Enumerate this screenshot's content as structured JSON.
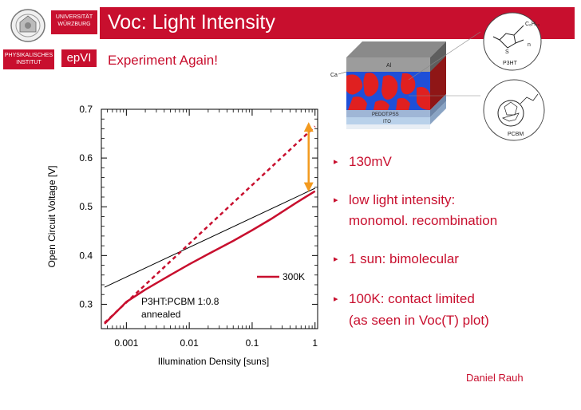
{
  "header": {
    "title": "Voc: Light Intensity",
    "subtitle": "Experiment Again!",
    "logo_university_line1": "UNIVERSITÄT",
    "logo_university_line2": "WÜRZBURG",
    "logo_institute_line1": "PHYSIKALISCHES",
    "logo_institute_line2": "INSTITUT",
    "logo_group": "epVI"
  },
  "chart_data": {
    "type": "line",
    "xlabel": "Illumination Density  [suns]",
    "ylabel": "Open Circuit Voltage  [V]",
    "xscale": "log",
    "xlim": [
      0.0004,
      1.1
    ],
    "ylim": [
      0.25,
      0.7
    ],
    "x_ticks": [
      0.001,
      0.01,
      0.1,
      1
    ],
    "x_tick_labels": [
      "0.001",
      "0.01",
      "0.1",
      "1"
    ],
    "y_ticks": [
      0.3,
      0.4,
      0.5,
      0.6,
      0.7
    ],
    "y_tick_labels": [
      "0.3",
      "0.4",
      "0.5",
      "0.6",
      "0.7"
    ],
    "legend": {
      "entry": "300K",
      "placement": "lower-right"
    },
    "annotation": [
      "P3HT:PCBM 1:0.8",
      "annealed"
    ],
    "series": [
      {
        "name": "300K",
        "style": "solid-red",
        "x": [
          0.00045,
          0.0007,
          0.001,
          0.002,
          0.005,
          0.01,
          0.02,
          0.05,
          0.1,
          0.2,
          0.5,
          1
        ],
        "y": [
          0.26,
          0.285,
          0.305,
          0.33,
          0.36,
          0.382,
          0.403,
          0.43,
          0.452,
          0.475,
          0.508,
          0.532
        ]
      }
    ],
    "fits": [
      {
        "label": "monomolecular-fit",
        "style": "thin-black",
        "x": [
          0.00045,
          1
        ],
        "y": [
          0.335,
          0.538
        ]
      },
      {
        "label": "bimolecular-fit",
        "style": "dashed-red",
        "x": [
          0.00045,
          1
        ],
        "y": [
          0.262,
          0.665
        ]
      }
    ],
    "arrow": {
      "style": "orange-double",
      "x": 1,
      "y_from": 0.537,
      "y_to": 0.667
    }
  },
  "device": {
    "al": "Al",
    "ca": "Ca",
    "pedot": "PEDOT:PSS",
    "ito": "ITO",
    "p3ht": "P3HT",
    "pcbm": "PCBM",
    "c6h13": "C₆H₁₃",
    "s": "S",
    "n": "n"
  },
  "bullets": [
    {
      "text": "130mV"
    },
    {
      "text": "low light intensity:"
    },
    {
      "text": "monomol. recombination"
    },
    {
      "text": "1 sun: bimolecular"
    },
    {
      "text": "100K: contact limited"
    },
    {
      "text": "(as seen in Voc(T) plot)"
    }
  ],
  "colors": {
    "accent": "#c80f2e",
    "arrow": "#f39a1f",
    "donor": "#e02020",
    "acceptor": "#1e4fd8"
  },
  "footer": {
    "author": "Daniel Rauh"
  }
}
